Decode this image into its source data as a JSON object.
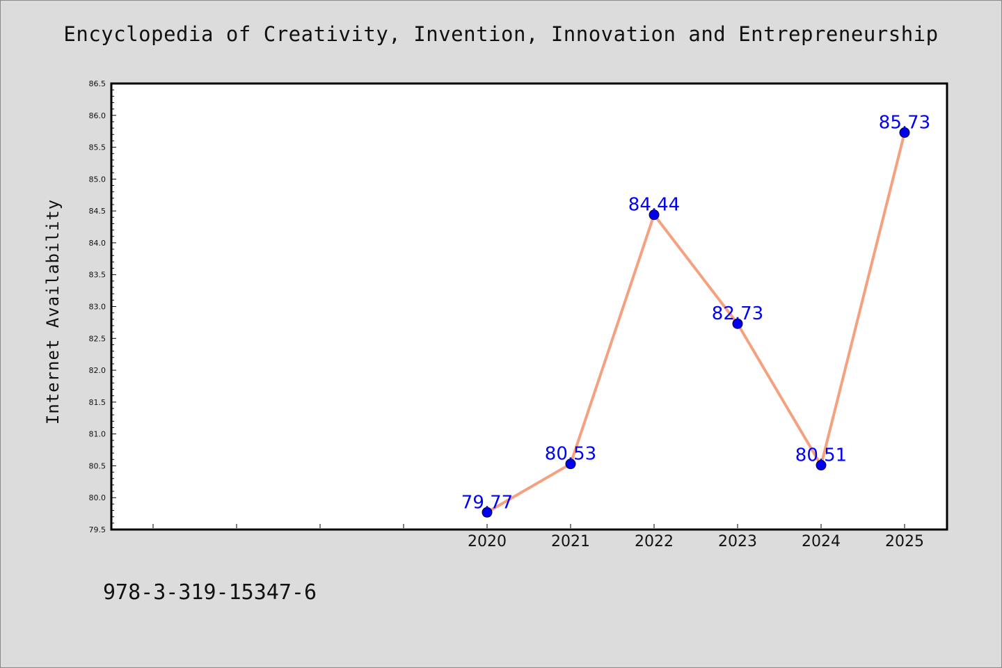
{
  "title": "Encyclopedia of Creativity, Invention, Innovation and Entrepreneurship",
  "footer_text": "978-3-319-15347-6",
  "colors": {
    "background": "#dcdcdc",
    "plot_background": "#ffffff",
    "line": "#f5a07f",
    "marker": "#0000ee",
    "data_label": "#0000ff"
  },
  "chart_data": {
    "type": "line",
    "title": "Encyclopedia of Creativity, Invention, Innovation and Entrepreneurship",
    "xlabel": "",
    "ylabel": "Internet Availability",
    "x": [
      "2020",
      "2021",
      "2022",
      "2023",
      "2024",
      "2025"
    ],
    "series": [
      {
        "values": [
          79.77,
          80.53,
          84.44,
          82.73,
          80.51,
          85.73
        ]
      }
    ],
    "data_labels": [
      "79.77",
      "80.53",
      "84.44",
      "82.73",
      "80.51",
      "85.73"
    ],
    "ylim": [
      79.5,
      86.5
    ],
    "y_ticks": [
      "79.5",
      "80.0",
      "80.5",
      "81.0",
      "81.5",
      "82.0",
      "82.5",
      "83.0",
      "83.5",
      "84.0",
      "84.5",
      "85.0",
      "85.5",
      "86.0",
      "86.5"
    ],
    "grid": false,
    "legend": "none"
  }
}
